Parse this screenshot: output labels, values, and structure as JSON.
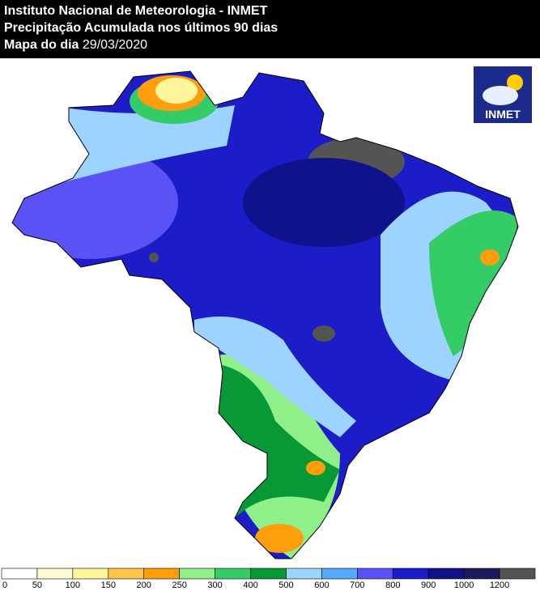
{
  "header": {
    "institute": "Instituto Nacional de Meteorologia - INMET",
    "product": "Precipitação Acumulada nos últimos 90 dias",
    "date_prefix": "Mapa do dia",
    "date": "29/03/2020"
  },
  "logo": {
    "text": "INMET"
  },
  "legend": {
    "items": [
      {
        "value": 0,
        "color": "#ffffff"
      },
      {
        "value": 50,
        "color": "#fff8d2"
      },
      {
        "value": 100,
        "color": "#fff59a"
      },
      {
        "value": 150,
        "color": "#ffc34a"
      },
      {
        "value": 200,
        "color": "#ff9e0c"
      },
      {
        "value": 250,
        "color": "#8ff08a"
      },
      {
        "value": 300,
        "color": "#33cc66"
      },
      {
        "value": 400,
        "color": "#069935"
      },
      {
        "value": 500,
        "color": "#9dd3ff"
      },
      {
        "value": 600,
        "color": "#57a8ff"
      },
      {
        "value": 700,
        "color": "#5a52f5"
      },
      {
        "value": 800,
        "color": "#1c1cc8"
      },
      {
        "value": 900,
        "color": "#10128c"
      },
      {
        "value": 1000,
        "color": "#1b1a5c"
      },
      {
        "value": 1200,
        "color": "#545454"
      }
    ]
  }
}
